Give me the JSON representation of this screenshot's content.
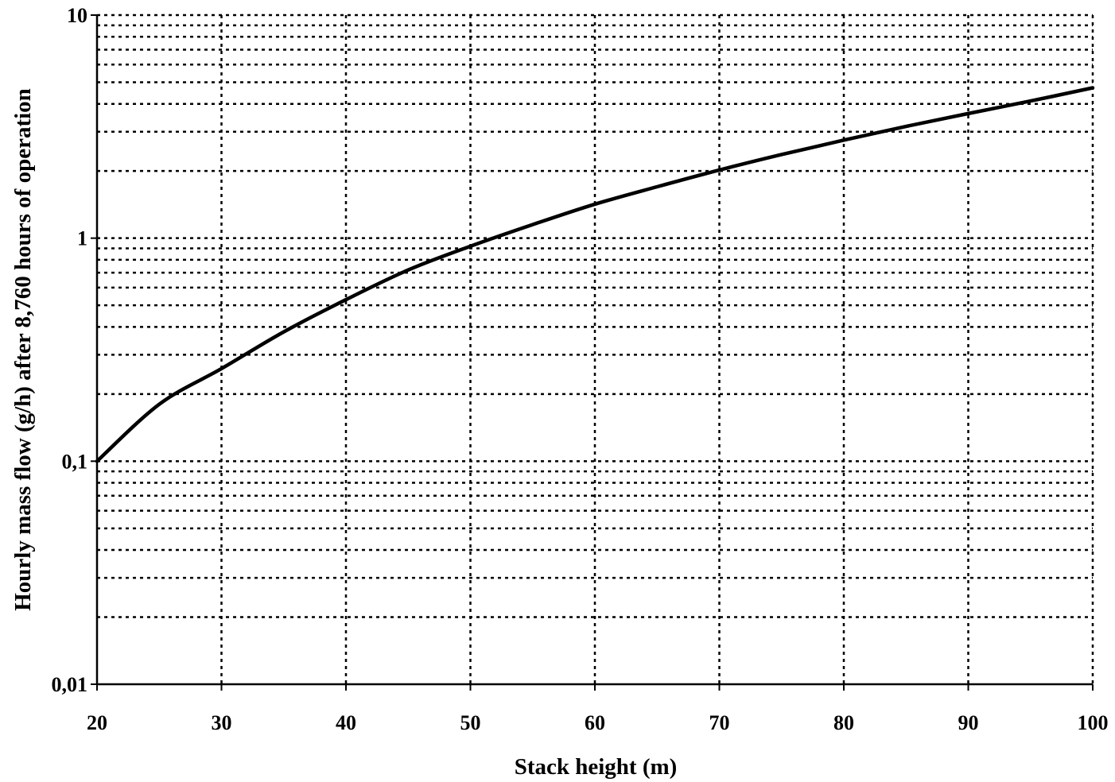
{
  "chart_data": {
    "type": "line",
    "title": "",
    "xlabel": "Stack height (m)",
    "ylabel": "Hourly mass flow (g/h) after  8,760 hours of operation",
    "xlim": [
      20,
      100
    ],
    "ylim": [
      0.01,
      10
    ],
    "y_scale": "log",
    "grid": true,
    "x_ticks": [
      {
        "value": 20,
        "label": "20"
      },
      {
        "value": 30,
        "label": "30"
      },
      {
        "value": 40,
        "label": "40"
      },
      {
        "value": 50,
        "label": "50"
      },
      {
        "value": 60,
        "label": "60"
      },
      {
        "value": 70,
        "label": "70"
      },
      {
        "value": 80,
        "label": "80"
      },
      {
        "value": 90,
        "label": "90"
      },
      {
        "value": 100,
        "label": "100"
      }
    ],
    "y_ticks": [
      {
        "value": 0.01,
        "label": "0,01"
      },
      {
        "value": 0.1,
        "label": "0,1"
      },
      {
        "value": 1,
        "label": "1"
      },
      {
        "value": 10,
        "label": "10"
      }
    ],
    "series": [
      {
        "x": [
          20,
          25,
          30,
          35,
          40,
          45,
          50,
          55,
          60,
          65,
          70,
          75,
          80,
          85,
          90,
          95,
          100
        ],
        "values": [
          0.1,
          0.18,
          0.26,
          0.38,
          0.53,
          0.72,
          0.92,
          1.15,
          1.42,
          1.7,
          2.02,
          2.37,
          2.75,
          3.17,
          3.62,
          4.12,
          4.72
        ]
      }
    ]
  }
}
